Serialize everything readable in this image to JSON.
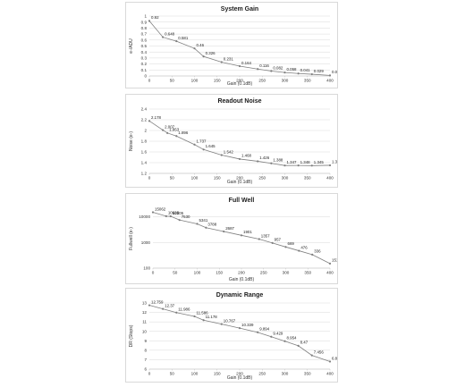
{
  "chart_data": [
    {
      "type": "line",
      "title": "System Gain",
      "xlabel": "Gain (0.1dB)",
      "ylabel": "e-/ADU",
      "xlim": [
        0,
        400
      ],
      "ylim": [
        0,
        1
      ],
      "xticks": [
        "0",
        "50",
        "100",
        "150",
        "200",
        "250",
        "300",
        "350",
        "400"
      ],
      "yticks": [
        "0",
        "0.1",
        "0.2",
        "0.3",
        "0.4",
        "0.5",
        "0.6",
        "0.7",
        "0.8",
        "0.9",
        "1"
      ],
      "log_y": false,
      "series": [
        {
          "x": [
            0,
            30,
            60,
            100,
            120,
            160,
            200,
            240,
            270,
            300,
            330,
            360,
            400
          ],
          "values": [
            0.92,
            0.648,
            0.581,
            0.46,
            0.326,
            0.231,
            0.164,
            0.116,
            0.082,
            0.058,
            0.041,
            0.029,
            0.009
          ],
          "labels": [
            "0.92",
            "0.648",
            "0.581",
            "0.46",
            "0.326",
            "0.231",
            "0.164",
            "0.116",
            "0.082",
            "0.058",
            "0.041",
            "0.029",
            "0.009"
          ]
        }
      ]
    },
    {
      "type": "line",
      "title": "Readout Noise",
      "xlabel": "Gain (0.1dB)",
      "ylabel": "Noise (e-)",
      "xlim": [
        0,
        400
      ],
      "ylim": [
        1.2,
        2.4
      ],
      "xticks": [
        "0",
        "50",
        "100",
        "150",
        "200",
        "250",
        "300",
        "350",
        "400"
      ],
      "yticks": [
        "1.2",
        "1.4",
        "1.6",
        "1.8",
        "2",
        "2.2",
        "2.4"
      ],
      "log_y": false,
      "series": [
        {
          "x": [
            0,
            30,
            40,
            60,
            100,
            120,
            160,
            200,
            240,
            270,
            300,
            330,
            360,
            400
          ],
          "values": [
            2.178,
            2.007,
            1.953,
            1.896,
            1.737,
            1.645,
            1.542,
            1.468,
            1.426,
            1.388,
            1.347,
            1.348,
            1.345,
            1.351
          ],
          "labels": [
            "2.178",
            "2.007",
            "1.953",
            "1.896",
            "1.737",
            "1.645",
            "1.542",
            "1.468",
            "1.426",
            "1.388",
            "1.347",
            "1.348",
            "1.345",
            "1.351"
          ]
        }
      ]
    },
    {
      "type": "line",
      "title": "Full Well",
      "xlabel": "Gain (0.1dB)",
      "ylabel": "Fullwell (e-)",
      "xlim": [
        0,
        400
      ],
      "ylim": [
        100,
        20000
      ],
      "xticks": [
        "0",
        "50",
        "100",
        "150",
        "200",
        "250",
        "300",
        "350",
        "400"
      ],
      "yticks": [
        "100",
        "1000",
        "10000"
      ],
      "log_y": true,
      "series": [
        {
          "x": [
            0,
            30,
            40,
            60,
            100,
            120,
            160,
            200,
            240,
            270,
            300,
            330,
            360,
            400
          ],
          "values": [
            15062,
            10623,
            10505,
            7530,
            5341,
            3788,
            2687,
            1901,
            1357,
            957,
            669,
            476,
            336,
            151
          ],
          "labels": [
            "15062",
            "10623",
            "10505",
            "7530",
            "5341",
            "3788",
            "2687",
            "1901",
            "1357",
            "957",
            "669",
            "476",
            "336",
            "151"
          ]
        }
      ]
    },
    {
      "type": "line",
      "title": "Dynamic Range",
      "xlabel": "Gain (0.1dB)",
      "ylabel": "DR (Stops)",
      "xlim": [
        0,
        400
      ],
      "ylim": [
        6,
        13
      ],
      "xticks": [
        "0",
        "50",
        "100",
        "150",
        "200",
        "250",
        "300",
        "350",
        "400"
      ],
      "yticks": [
        "6",
        "7",
        "8",
        "9",
        "10",
        "11",
        "12",
        "13"
      ],
      "log_y": false,
      "series": [
        {
          "x": [
            0,
            30,
            60,
            100,
            120,
            160,
            200,
            240,
            270,
            300,
            330,
            360,
            400
          ],
          "values": [
            12.759,
            12.37,
            11.986,
            11.586,
            11.178,
            10.767,
            10.339,
            9.894,
            9.429,
            8.954,
            8.47,
            7.456,
            6.804
          ],
          "labels": [
            "12.759",
            "12.37",
            "11.986",
            "11.586",
            "11.178",
            "10.767",
            "10.339",
            "9.894",
            "9.429",
            "8.954",
            "8.47",
            "7.456",
            "6.804"
          ]
        }
      ]
    }
  ],
  "style": {
    "line_color": "#7f7f7f",
    "marker_color": "#7f7f7f",
    "grid_color": "#d9d9d9",
    "axis_color": "#bfbfbf"
  }
}
